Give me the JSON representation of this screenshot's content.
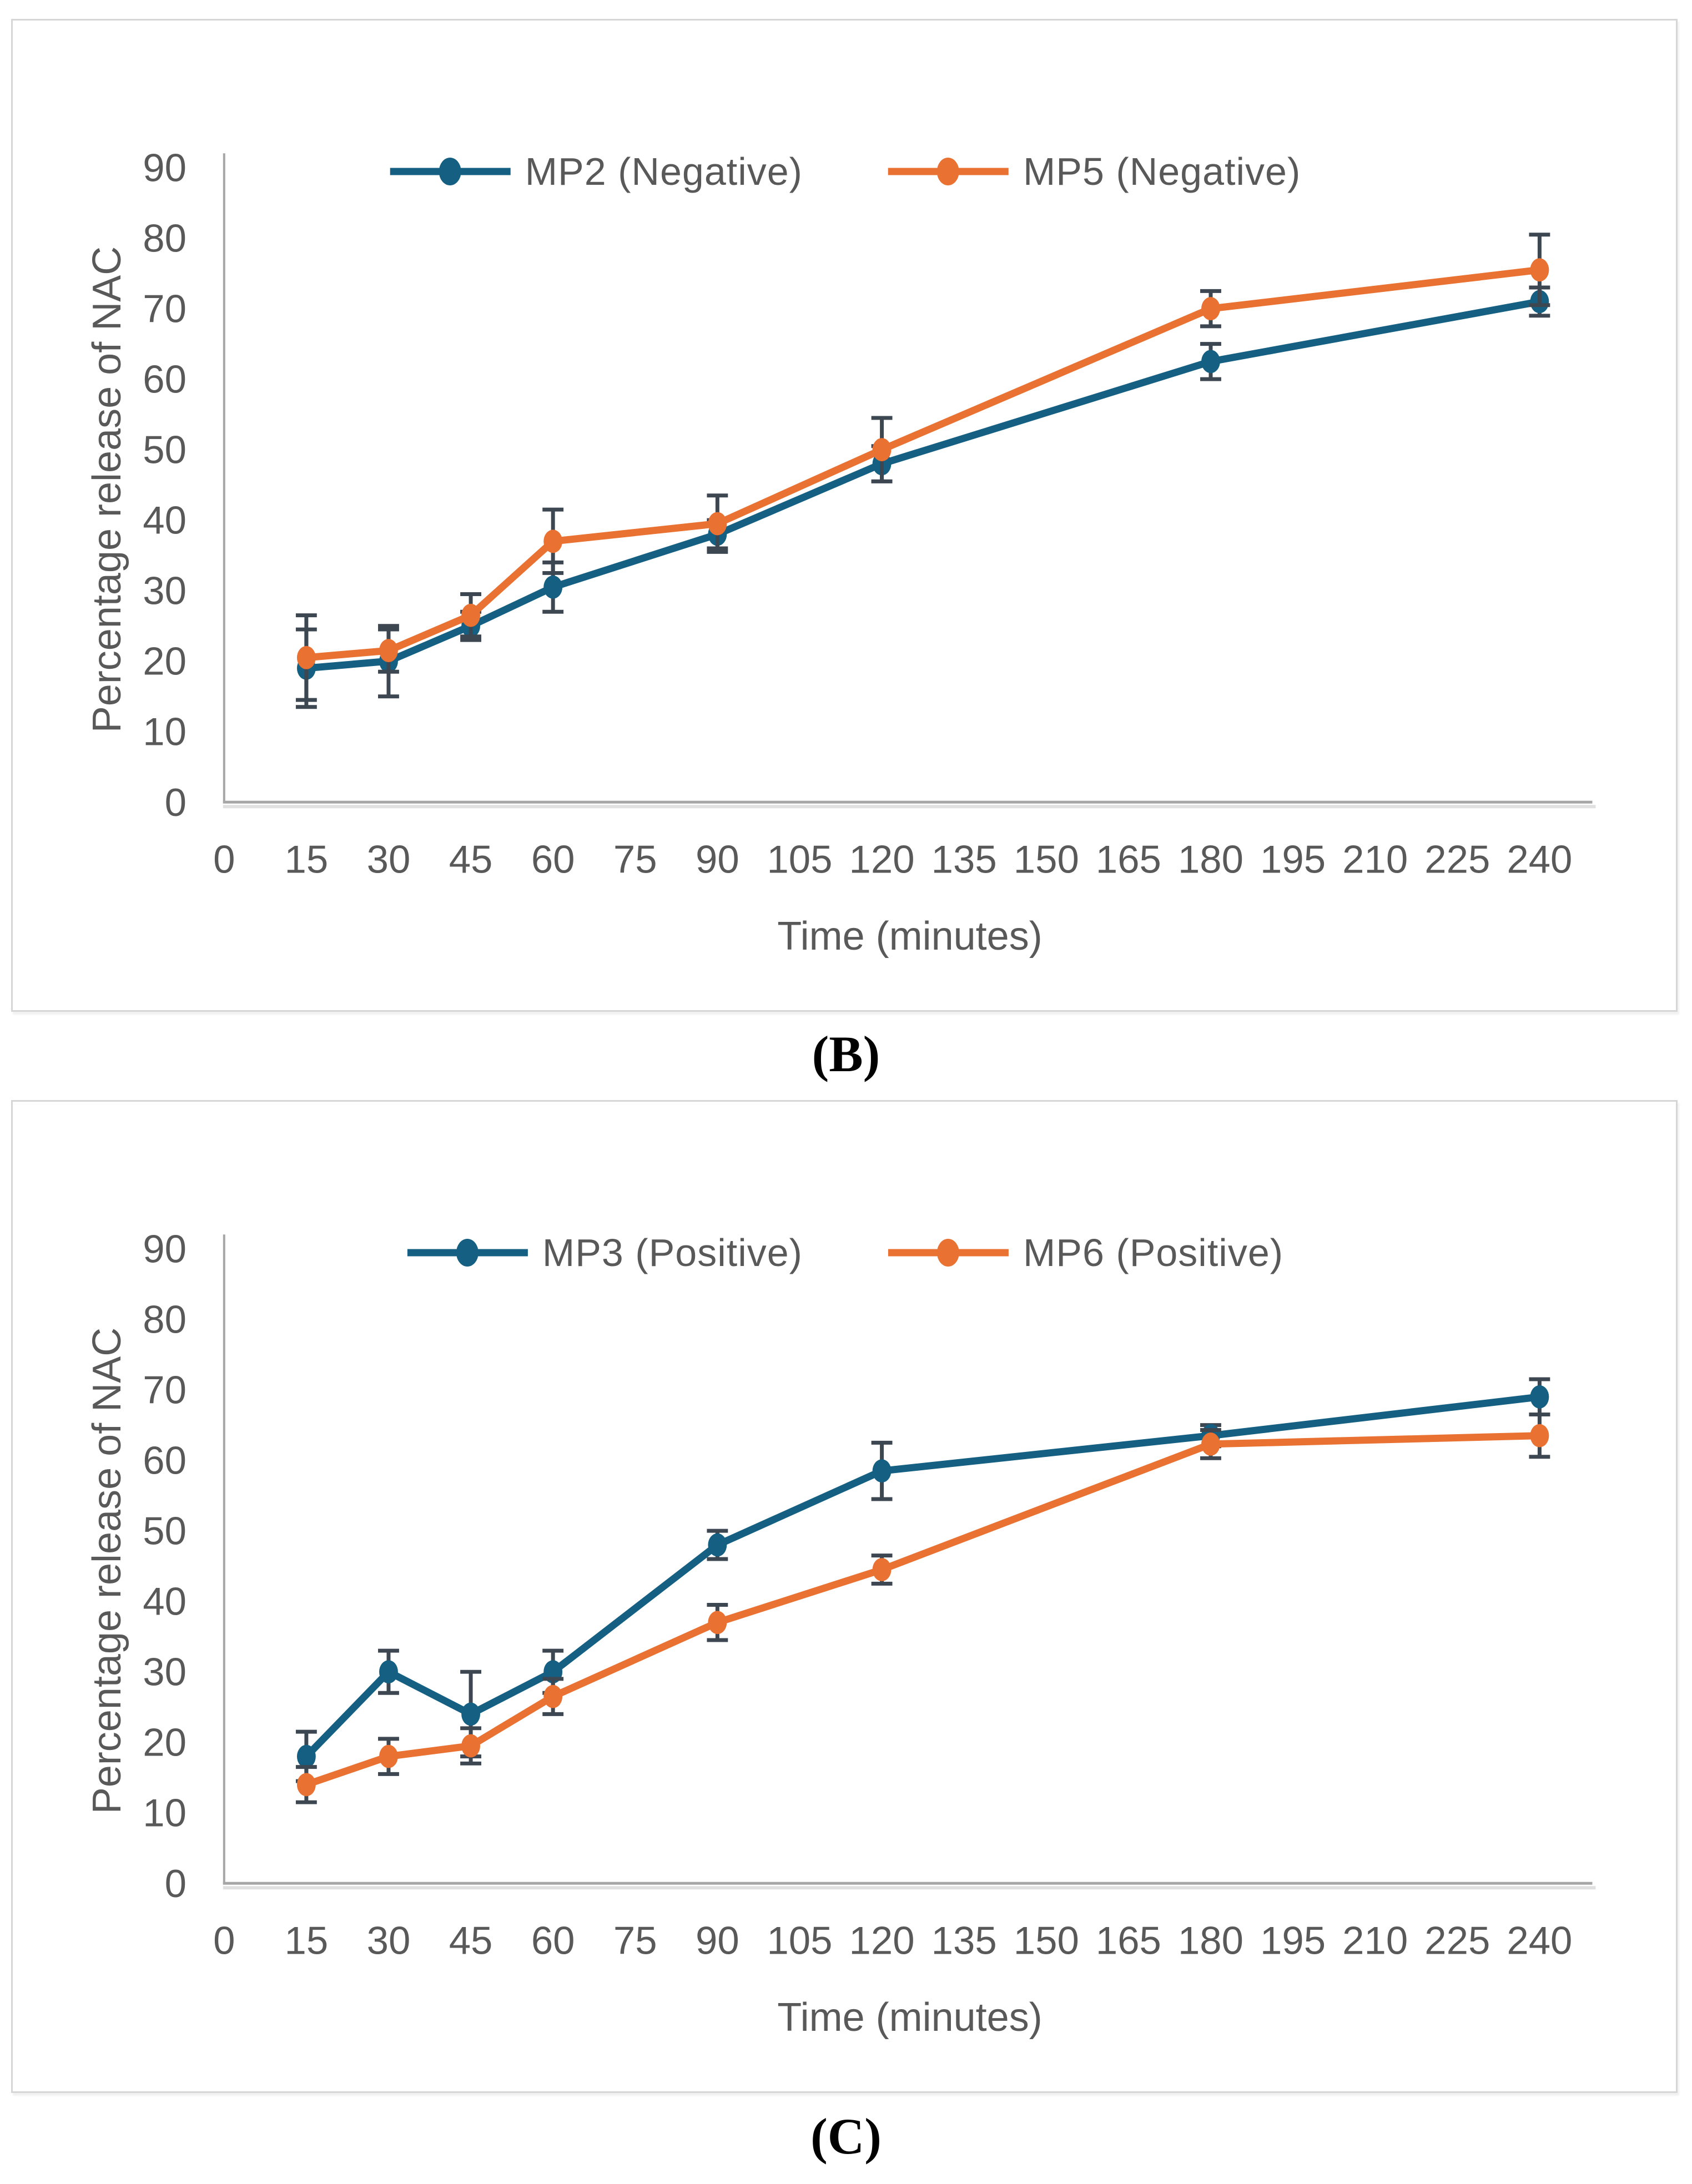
{
  "figure": {
    "panel_b_caption": "(B)",
    "panel_c_caption": "(C)"
  },
  "chart_data": [
    {
      "type": "line",
      "caption": "(B)",
      "legend_position": "top",
      "error_bars": true,
      "x_axis": {
        "title": "Time (minutes)",
        "ticks": [
          0,
          15,
          30,
          45,
          60,
          75,
          90,
          105,
          120,
          135,
          150,
          165,
          180,
          195,
          210,
          225,
          240
        ]
      },
      "y_axis": {
        "title": "Percentage release of NAC",
        "min": 0,
        "max": 90,
        "step": 10
      },
      "x": [
        15,
        30,
        45,
        60,
        90,
        120,
        180,
        240
      ],
      "series": [
        {
          "name": "MP2 (Negative)",
          "color": "#156082",
          "values": [
            19,
            20,
            25,
            30.5,
            38,
            48,
            62.5,
            71
          ],
          "errors": [
            5.5,
            5,
            2,
            3.5,
            2,
            2.5,
            2.5,
            2
          ]
        },
        {
          "name": "MP5 (Negative)",
          "color": "#E97132",
          "values": [
            20.5,
            21.5,
            26.5,
            37,
            39.5,
            50,
            70,
            75.5
          ],
          "errors": [
            6,
            3,
            3,
            4.5,
            4,
            4.5,
            2.5,
            5
          ]
        }
      ]
    },
    {
      "type": "line",
      "caption": "(C)",
      "legend_position": "top",
      "error_bars": true,
      "x_axis": {
        "title": "Time (minutes)",
        "ticks": [
          0,
          15,
          30,
          45,
          60,
          75,
          90,
          105,
          120,
          135,
          150,
          165,
          180,
          195,
          210,
          225,
          240
        ]
      },
      "y_axis": {
        "title": "Percentage release of NAC",
        "min": 0,
        "max": 90,
        "step": 10
      },
      "x": [
        15,
        30,
        45,
        60,
        90,
        120,
        180,
        240
      ],
      "series": [
        {
          "name": "MP3 (Positive)",
          "color": "#156082",
          "values": [
            18,
            30,
            24,
            30,
            48,
            58.5,
            63.5,
            69
          ],
          "errors": [
            3.5,
            3,
            6,
            3,
            2,
            4,
            1.5,
            2.5
          ]
        },
        {
          "name": "MP6 (Positive)",
          "color": "#E97132",
          "values": [
            14,
            18,
            19.5,
            26.5,
            37,
            44.5,
            62.3,
            63.5
          ],
          "errors": [
            2.5,
            2.5,
            2.5,
            2.5,
            2.5,
            2,
            2,
            3
          ]
        }
      ]
    }
  ],
  "style": {
    "error_bar_color": "#3D4752",
    "axis_line_color": "#A6A6A6",
    "tick_text_color": "#595959"
  }
}
